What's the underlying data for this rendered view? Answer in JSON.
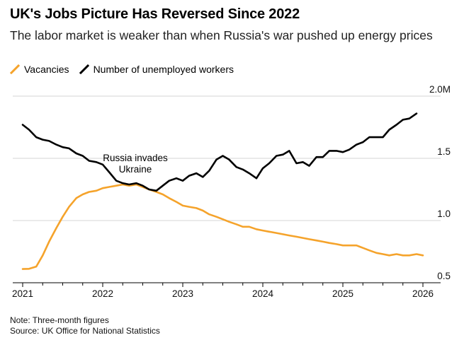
{
  "title": "UK's Jobs Picture Has Reversed Since 2022",
  "subtitle": "The labor market is weaker than when Russia's war pushed up energy prices",
  "legend": [
    {
      "label": "Vacancies",
      "color": "#f5a32b"
    },
    {
      "label": "Number of unemployed workers",
      "color": "#000000"
    }
  ],
  "annotation": {
    "line1": "Russia invades",
    "line2": "Ukraine"
  },
  "footer": {
    "note": "Note: Three-month figures",
    "source": "Source: UK Office for National Statistics"
  },
  "chart_data": {
    "type": "line",
    "title": "UK's Jobs Picture Has Reversed Since 2022",
    "xlabel": "",
    "ylabel": "",
    "ylim": [
      0.5,
      2.0
    ],
    "xlim": [
      2021.0,
      2026.0
    ],
    "x_ticks": [
      2021,
      2022,
      2023,
      2024,
      2025,
      2026
    ],
    "x_tick_labels": [
      "2021",
      "2022",
      "2023",
      "2024",
      "2025",
      "2026"
    ],
    "y_ticks": [
      0.5,
      1.0,
      1.5,
      2.0
    ],
    "y_tick_labels": [
      "0.5",
      "1.0",
      "1.5",
      "2.0M"
    ],
    "grid": "horizontal",
    "series": [
      {
        "name": "Vacancies",
        "color": "#f5a32b",
        "points": [
          [
            2021.0,
            0.61
          ],
          [
            2021.08,
            0.612
          ],
          [
            2021.17,
            0.63
          ],
          [
            2021.25,
            0.72
          ],
          [
            2021.33,
            0.83
          ],
          [
            2021.42,
            0.94
          ],
          [
            2021.5,
            1.03
          ],
          [
            2021.58,
            1.11
          ],
          [
            2021.67,
            1.18
          ],
          [
            2021.75,
            1.21
          ],
          [
            2021.83,
            1.23
          ],
          [
            2021.92,
            1.24
          ],
          [
            2022.0,
            1.26
          ],
          [
            2022.08,
            1.27
          ],
          [
            2022.17,
            1.28
          ],
          [
            2022.25,
            1.29
          ],
          [
            2022.33,
            1.28
          ],
          [
            2022.42,
            1.29
          ],
          [
            2022.5,
            1.27
          ],
          [
            2022.58,
            1.25
          ],
          [
            2022.67,
            1.23
          ],
          [
            2022.75,
            1.21
          ],
          [
            2022.83,
            1.18
          ],
          [
            2022.92,
            1.15
          ],
          [
            2023.0,
            1.12
          ],
          [
            2023.08,
            1.11
          ],
          [
            2023.17,
            1.1
          ],
          [
            2023.25,
            1.08
          ],
          [
            2023.33,
            1.05
          ],
          [
            2023.42,
            1.03
          ],
          [
            2023.5,
            1.01
          ],
          [
            2023.58,
            0.99
          ],
          [
            2023.67,
            0.97
          ],
          [
            2023.75,
            0.95
          ],
          [
            2023.83,
            0.95
          ],
          [
            2023.92,
            0.93
          ],
          [
            2024.0,
            0.92
          ],
          [
            2024.08,
            0.91
          ],
          [
            2024.17,
            0.9
          ],
          [
            2024.25,
            0.89
          ],
          [
            2024.33,
            0.88
          ],
          [
            2024.42,
            0.87
          ],
          [
            2024.5,
            0.86
          ],
          [
            2024.58,
            0.85
          ],
          [
            2024.67,
            0.84
          ],
          [
            2024.75,
            0.83
          ],
          [
            2024.83,
            0.82
          ],
          [
            2024.92,
            0.81
          ],
          [
            2025.0,
            0.8
          ],
          [
            2025.08,
            0.8
          ],
          [
            2025.17,
            0.8
          ],
          [
            2025.25,
            0.78
          ],
          [
            2025.33,
            0.76
          ],
          [
            2025.42,
            0.74
          ],
          [
            2025.5,
            0.73
          ],
          [
            2025.58,
            0.72
          ],
          [
            2025.67,
            0.73
          ],
          [
            2025.75,
            0.72
          ],
          [
            2025.83,
            0.72
          ],
          [
            2025.92,
            0.73
          ],
          [
            2026.0,
            0.72
          ]
        ]
      },
      {
        "name": "Number of unemployed workers",
        "color": "#000000",
        "points": [
          [
            2021.0,
            1.77
          ],
          [
            2021.08,
            1.73
          ],
          [
            2021.17,
            1.67
          ],
          [
            2021.25,
            1.65
          ],
          [
            2021.33,
            1.64
          ],
          [
            2021.42,
            1.61
          ],
          [
            2021.5,
            1.59
          ],
          [
            2021.58,
            1.58
          ],
          [
            2021.67,
            1.54
          ],
          [
            2021.75,
            1.52
          ],
          [
            2021.83,
            1.48
          ],
          [
            2021.92,
            1.47
          ],
          [
            2022.0,
            1.45
          ],
          [
            2022.08,
            1.39
          ],
          [
            2022.17,
            1.32
          ],
          [
            2022.25,
            1.3
          ],
          [
            2022.33,
            1.29
          ],
          [
            2022.42,
            1.3
          ],
          [
            2022.5,
            1.28
          ],
          [
            2022.58,
            1.25
          ],
          [
            2022.67,
            1.24
          ],
          [
            2022.75,
            1.28
          ],
          [
            2022.83,
            1.32
          ],
          [
            2022.92,
            1.34
          ],
          [
            2023.0,
            1.32
          ],
          [
            2023.08,
            1.36
          ],
          [
            2023.17,
            1.38
          ],
          [
            2023.25,
            1.35
          ],
          [
            2023.33,
            1.4
          ],
          [
            2023.42,
            1.49
          ],
          [
            2023.5,
            1.52
          ],
          [
            2023.58,
            1.49
          ],
          [
            2023.67,
            1.43
          ],
          [
            2023.75,
            1.41
          ],
          [
            2023.83,
            1.38
          ],
          [
            2023.92,
            1.34
          ],
          [
            2024.0,
            1.42
          ],
          [
            2024.08,
            1.46
          ],
          [
            2024.17,
            1.52
          ],
          [
            2024.25,
            1.53
          ],
          [
            2024.33,
            1.56
          ],
          [
            2024.42,
            1.46
          ],
          [
            2024.5,
            1.47
          ],
          [
            2024.58,
            1.44
          ],
          [
            2024.67,
            1.51
          ],
          [
            2024.75,
            1.51
          ],
          [
            2024.83,
            1.56
          ],
          [
            2024.92,
            1.56
          ],
          [
            2025.0,
            1.55
          ],
          [
            2025.08,
            1.57
          ],
          [
            2025.17,
            1.61
          ],
          [
            2025.25,
            1.63
          ],
          [
            2025.33,
            1.67
          ],
          [
            2025.42,
            1.67
          ],
          [
            2025.5,
            1.67
          ],
          [
            2025.58,
            1.73
          ],
          [
            2025.67,
            1.77
          ],
          [
            2025.75,
            1.81
          ],
          [
            2025.83,
            1.82
          ],
          [
            2025.92,
            1.86
          ]
        ]
      }
    ]
  }
}
